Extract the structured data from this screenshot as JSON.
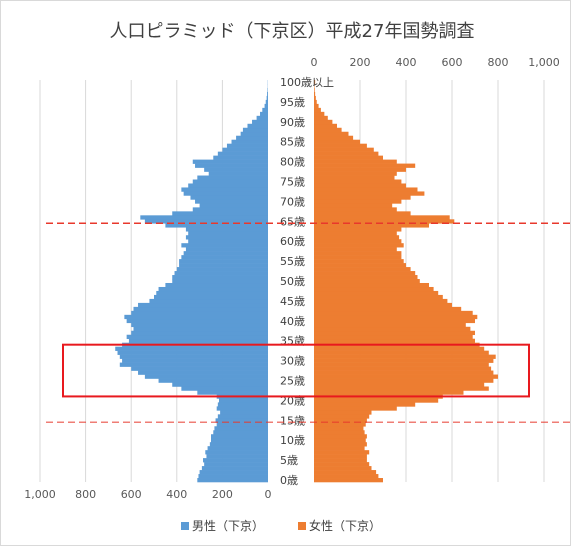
{
  "chart_data": {
    "type": "bar",
    "orientation": "horizontal-pyramid",
    "title": "人口ピラミッド（下京区）平成27年国勢調査",
    "age_unit": "歳",
    "age_labels": [
      "0歳",
      "5歳",
      "10歳",
      "15歳",
      "20歳",
      "25歳",
      "30歳",
      "35歳",
      "40歳",
      "45歳",
      "50歳",
      "55歳",
      "60歳",
      "65歳",
      "70歳",
      "75歳",
      "80歳",
      "85歳",
      "90歳",
      "95歳",
      "100歳以上"
    ],
    "left_axis": {
      "ticks": [
        "1,000",
        "800",
        "600",
        "400",
        "200",
        "0"
      ],
      "range": [
        0,
        1000
      ],
      "direction": "reversed"
    },
    "right_axis": {
      "ticks": [
        "0",
        "200",
        "400",
        "600",
        "800",
        "1,000"
      ],
      "range": [
        0,
        1000
      ]
    },
    "grid": true,
    "legend_position": "bottom",
    "series": [
      {
        "name": "男性（下京）",
        "color": "#5b9bd5",
        "values": [
          310,
          305,
          300,
          290,
          280,
          285,
          270,
          275,
          265,
          255,
          250,
          250,
          240,
          235,
          225,
          230,
          220,
          210,
          225,
          220,
          215,
          225,
          310,
          380,
          420,
          480,
          540,
          570,
          600,
          650,
          640,
          650,
          660,
          670,
          640,
          610,
          620,
          600,
          590,
          600,
          620,
          630,
          600,
          590,
          570,
          520,
          500,
          490,
          480,
          450,
          420,
          420,
          410,
          400,
          390,
          390,
          380,
          370,
          360,
          380,
          350,
          360,
          350,
          360,
          450,
          540,
          560,
          420,
          330,
          300,
          320,
          340,
          370,
          380,
          350,
          330,
          310,
          260,
          280,
          320,
          330,
          240,
          220,
          200,
          180,
          160,
          140,
          120,
          110,
          90,
          70,
          50,
          35,
          25,
          15,
          10,
          6,
          4,
          2,
          1,
          1
        ]
      },
      {
        "name": "女性（下京）",
        "color": "#ed7d31",
        "values": [
          300,
          280,
          270,
          250,
          240,
          230,
          230,
          240,
          220,
          230,
          225,
          230,
          220,
          215,
          225,
          230,
          240,
          250,
          360,
          440,
          540,
          560,
          650,
          760,
          740,
          780,
          800,
          780,
          770,
          760,
          780,
          790,
          760,
          740,
          720,
          700,
          690,
          700,
          680,
          660,
          700,
          710,
          690,
          640,
          600,
          580,
          560,
          540,
          520,
          500,
          460,
          450,
          440,
          420,
          400,
          390,
          380,
          380,
          360,
          390,
          380,
          370,
          360,
          380,
          500,
          610,
          590,
          420,
          360,
          340,
          380,
          420,
          480,
          450,
          400,
          380,
          350,
          360,
          400,
          440,
          360,
          300,
          280,
          260,
          230,
          200,
          170,
          150,
          120,
          100,
          80,
          60,
          45,
          30,
          20,
          12,
          8,
          5,
          3,
          2,
          5
        ]
      }
    ],
    "annotations": [
      {
        "type": "dashed-line",
        "color": "#e8382c",
        "age": 65
      },
      {
        "type": "dashed-line",
        "color": "#e8382c",
        "age": 15
      },
      {
        "type": "box",
        "color": "#e8191e",
        "age_from": 22,
        "age_to": 34
      }
    ]
  }
}
